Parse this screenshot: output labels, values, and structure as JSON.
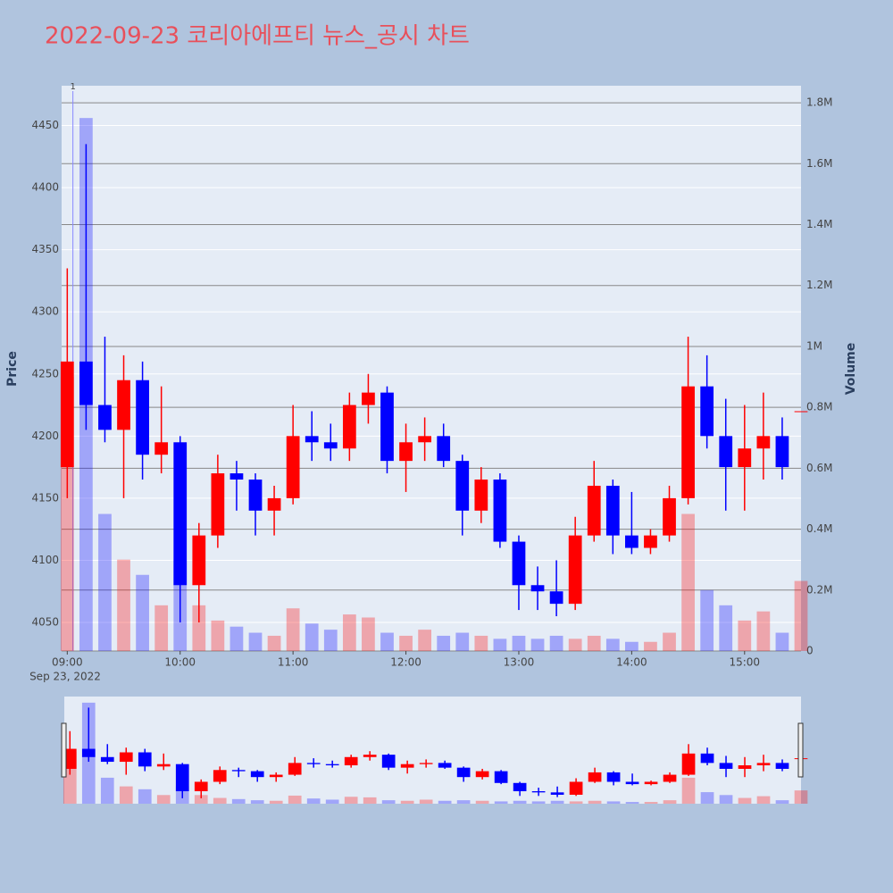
{
  "chart_data": {
    "type": "candlestick",
    "title": "2022-09-23 코리아에프티 뉴스_공시 차트",
    "x": [
      "09:00",
      "09:10",
      "09:20",
      "09:30",
      "09:40",
      "09:50",
      "10:00",
      "10:10",
      "10:20",
      "10:30",
      "10:40",
      "10:50",
      "11:00",
      "11:10",
      "11:20",
      "11:30",
      "11:40",
      "11:50",
      "12:00",
      "12:10",
      "12:20",
      "12:30",
      "12:40",
      "12:50",
      "13:00",
      "13:10",
      "13:20",
      "13:30",
      "13:40",
      "13:50",
      "14:00",
      "14:10",
      "14:20",
      "14:30",
      "14:40",
      "14:50",
      "15:00",
      "15:10",
      "15:20",
      "15:30"
    ],
    "open": [
      4175,
      4260,
      4225,
      4205,
      4245,
      4185,
      4195,
      4080,
      4120,
      4170,
      4165,
      4140,
      4150,
      4200,
      4195,
      4190,
      4225,
      4235,
      4180,
      4195,
      4200,
      4180,
      4140,
      4165,
      4115,
      4080,
      4075,
      4065,
      4120,
      4160,
      4120,
      4110,
      4120,
      4150,
      4240,
      4200,
      4175,
      4190,
      4200,
      4220
    ],
    "high": [
      4335,
      4435,
      4280,
      4265,
      4260,
      4240,
      4200,
      4130,
      4185,
      4180,
      4170,
      4160,
      4225,
      4220,
      4210,
      4235,
      4250,
      4240,
      4210,
      4215,
      4210,
      4185,
      4175,
      4170,
      4120,
      4095,
      4100,
      4135,
      4180,
      4165,
      4155,
      4125,
      4160,
      4280,
      4265,
      4230,
      4225,
      4235,
      4215,
      4220
    ],
    "low": [
      4150,
      4205,
      4195,
      4150,
      4165,
      4170,
      4050,
      4050,
      4110,
      4140,
      4120,
      4120,
      4145,
      4180,
      4180,
      4180,
      4210,
      4170,
      4155,
      4180,
      4175,
      4120,
      4130,
      4110,
      4060,
      4060,
      4055,
      4060,
      4115,
      4105,
      4105,
      4105,
      4115,
      4145,
      4190,
      4140,
      4140,
      4165,
      4165,
      4220
    ],
    "close": [
      4260,
      4225,
      4205,
      4245,
      4185,
      4195,
      4080,
      4120,
      4170,
      4165,
      4140,
      4150,
      4200,
      4195,
      4190,
      4225,
      4235,
      4180,
      4195,
      4200,
      4180,
      4140,
      4165,
      4115,
      4080,
      4075,
      4065,
      4120,
      4160,
      4120,
      4110,
      4120,
      4150,
      4240,
      4200,
      4175,
      4190,
      4200,
      4175,
      4220
    ],
    "volume": [
      900000,
      1750000,
      450000,
      300000,
      250000,
      150000,
      300000,
      150000,
      100000,
      80000,
      60000,
      50000,
      140000,
      90000,
      70000,
      120000,
      110000,
      60000,
      50000,
      70000,
      50000,
      60000,
      50000,
      40000,
      50000,
      40000,
      50000,
      40000,
      50000,
      40000,
      30000,
      30000,
      60000,
      450000,
      200000,
      150000,
      100000,
      130000,
      60000,
      230000
    ],
    "increasing_color": "#ff0000",
    "decreasing_color": "#0000ff",
    "xlim": [
      "08:57",
      "15:30"
    ],
    "xticks": [
      "09:00",
      "10:00",
      "11:00",
      "12:00",
      "13:00",
      "14:00",
      "15:00"
    ],
    "x_date_label": "Sep 23, 2022",
    "ylim": [
      4027,
      4482
    ],
    "yticks": [
      4050,
      4100,
      4150,
      4200,
      4250,
      4300,
      4350,
      4400,
      4450
    ],
    "y2lim": [
      0,
      1856000
    ],
    "y2ticks": [
      0,
      {
        "value": 200000,
        "label": "0.2M"
      },
      {
        "value": 400000,
        "label": "0.4M"
      },
      {
        "value": 600000,
        "label": "0.6M"
      },
      {
        "value": 800000,
        "label": "0.8M"
      },
      {
        "value": 1000000,
        "label": "1M"
      },
      {
        "value": 1200000,
        "label": "1.2M"
      },
      {
        "value": 1400000,
        "label": "1.4M"
      },
      {
        "value": 1600000,
        "label": "1.6M"
      },
      {
        "value": 1800000,
        "label": "1.8M"
      }
    ],
    "ylabel": "Price",
    "y2label": "Volume",
    "annotation": {
      "text": "1",
      "x": "09:03"
    },
    "rangeslider": true
  }
}
